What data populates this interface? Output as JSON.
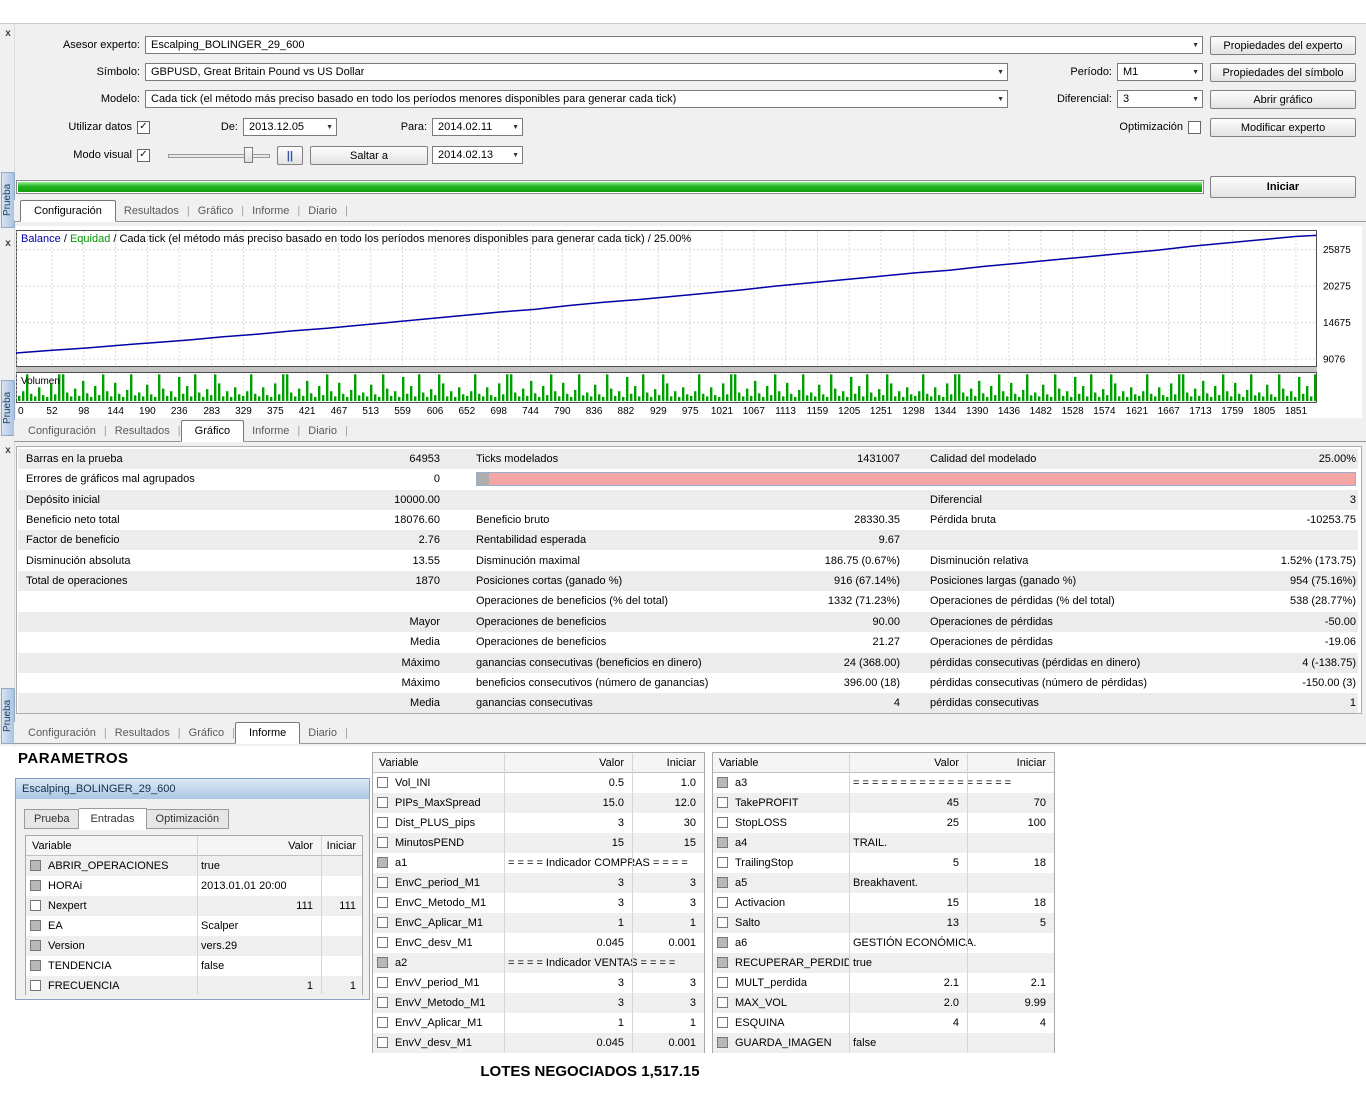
{
  "app": {
    "name": "Strategy Tester - Prueba"
  },
  "icons": {
    "dropdown": "▼",
    "check": "✓",
    "divider": "|",
    "close": "x"
  },
  "sidebar": {
    "tab_label": "Prueba"
  },
  "colors": {
    "progress_green": "#22b322",
    "balance_line": "#0000a8",
    "equity_label": "#009900",
    "volume_green": "#00a000",
    "quality_pink": "#f4a6a6",
    "rail_tab_blue": "#aac2e0"
  },
  "settings": {
    "rows": {
      "expert": {
        "label": "Asesor experto:",
        "value": "Escalping_BOLINGER_29_600"
      },
      "symbol": {
        "label": "Símbolo:",
        "value": "GBPUSD, Great Britain Pound vs US Dollar"
      },
      "period": {
        "label": "Período:",
        "value": "M1"
      },
      "model": {
        "label": "Modelo:",
        "value": "Cada tick (el método más preciso basado en todo los períodos menores disponibles para generar cada tick)"
      },
      "spread": {
        "label": "Diferencial:",
        "value": "3"
      },
      "use_data": {
        "label": "Utilizar datos",
        "checked": true
      },
      "from": {
        "label": "De:",
        "value": "2013.12.05"
      },
      "to": {
        "label": "Para:",
        "value": "2014.02.11"
      },
      "optimization": {
        "label": "Optimización",
        "checked": false
      },
      "visual": {
        "label": "Modo visual",
        "checked": true
      },
      "pause": "||",
      "skip": {
        "label": "Saltar a",
        "value": "2014.02.13"
      }
    },
    "buttons": {
      "expert_props": "Propiedades del experto",
      "symbol_props": "Propiedades del símbolo",
      "open_chart": "Abrir gráfico",
      "modify_expert": "Modificar experto",
      "start": "Iniciar"
    }
  },
  "tabs": {
    "labels": [
      "Configuración",
      "Resultados",
      "Gráfico",
      "Informe",
      "Diario"
    ],
    "strips": [
      {
        "active": 0
      },
      {
        "active": 2
      },
      {
        "active": 3
      }
    ]
  },
  "chart_data": {
    "type": "line",
    "title_parts": {
      "balance": "Balance",
      "equity": "Equidad",
      "rest": "Cada tick (el método más preciso basado en todo los períodos menores disponibles para generar cada tick)",
      "quality": "25.00%"
    },
    "xlabel": "",
    "ylabel": "",
    "x_range": [
      0,
      1880
    ],
    "y_range": [
      8000,
      28900
    ],
    "y_ticks": [
      9076,
      14675,
      20275,
      25875
    ],
    "x_ticks": [
      0,
      52,
      98,
      144,
      190,
      236,
      283,
      329,
      375,
      421,
      467,
      513,
      559,
      606,
      652,
      698,
      744,
      790,
      836,
      882,
      929,
      975,
      1021,
      1067,
      1113,
      1159,
      1205,
      1251,
      1298,
      1344,
      1390,
      1436,
      1482,
      1528,
      1574,
      1621,
      1667,
      1713,
      1759,
      1805,
      1851
    ],
    "series": [
      {
        "name": "Balance",
        "points": [
          [
            0,
            10000
          ],
          [
            50,
            10400
          ],
          [
            100,
            10750
          ],
          [
            150,
            11200
          ],
          [
            200,
            11600
          ],
          [
            250,
            12000
          ],
          [
            300,
            12500
          ],
          [
            350,
            12900
          ],
          [
            400,
            13400
          ],
          [
            450,
            13800
          ],
          [
            500,
            14300
          ],
          [
            550,
            14800
          ],
          [
            600,
            15300
          ],
          [
            650,
            15800
          ],
          [
            700,
            16300
          ],
          [
            750,
            16700
          ],
          [
            800,
            17300
          ],
          [
            850,
            17800
          ],
          [
            900,
            18200
          ],
          [
            950,
            18700
          ],
          [
            1000,
            19200
          ],
          [
            1050,
            19700
          ],
          [
            1100,
            20300
          ],
          [
            1150,
            20800
          ],
          [
            1200,
            21300
          ],
          [
            1250,
            21800
          ],
          [
            1300,
            22300
          ],
          [
            1350,
            22700
          ],
          [
            1400,
            23300
          ],
          [
            1450,
            23800
          ],
          [
            1500,
            24300
          ],
          [
            1550,
            24800
          ],
          [
            1600,
            25300
          ],
          [
            1650,
            25800
          ],
          [
            1700,
            26400
          ],
          [
            1750,
            26900
          ],
          [
            1800,
            27400
          ],
          [
            1850,
            27900
          ],
          [
            1880,
            28076.6
          ]
        ]
      }
    ],
    "volume_label": "Volumen",
    "volume_pattern": [
      0.12,
      0.3,
      0.95,
      0.2,
      0.1,
      0.45,
      0.15,
      0.08,
      0.6,
      0.18,
      0.95,
      0.95,
      0.25,
      0.1,
      0.4,
      0.12,
      0.7,
      0.22,
      0.08,
      0.5,
      0.15,
      0.95,
      0.3,
      0.1,
      0.62,
      0.2,
      0.08,
      0.35,
      0.95,
      0.14,
      0.25,
      0.1,
      0.55,
      0.18,
      0.08,
      0.95,
      0.4,
      0.12,
      0.3,
      0.08,
      0.85,
      0.2,
      0.5,
      0.1,
      0.95,
      0.25,
      0.08,
      0.38,
      0.15,
      0.95,
      0.6,
      0.1,
      0.3,
      0.08,
      0.45,
      0.18
    ],
    "grid": true,
    "legend_position": "top-left"
  },
  "report": {
    "rows": [
      {
        "cells": [
          "Barras en la prueba",
          "64953",
          "Ticks modelados",
          "1431007",
          "Calidad del modelado",
          "25.00%"
        ]
      },
      {
        "cells": [
          "Errores de gráficos mal agrupados",
          "0",
          "",
          "",
          "",
          ""
        ],
        "bar": true
      },
      {
        "cells": [
          "Depósito inicial",
          "10000.00",
          "",
          "",
          "Diferencial",
          "3"
        ]
      },
      {
        "cells": [
          "Beneficio neto total",
          "18076.60",
          "Beneficio bruto",
          "28330.35",
          "Pérdida bruta",
          "-10253.75"
        ]
      },
      {
        "cells": [
          "Factor de beneficio",
          "2.76",
          "Rentabilidad esperada",
          "9.67",
          "",
          ""
        ]
      },
      {
        "cells": [
          "Disminución absoluta",
          "13.55",
          "Disminución maximal",
          "186.75 (0.67%)",
          "Disminución relativa",
          "1.52% (173.75)"
        ]
      },
      {
        "cells": [
          "Total de operaciones",
          "1870",
          "Posiciones cortas (ganado %)",
          "916 (67.14%)",
          "Posiciones largas (ganado %)",
          "954 (75.16%)"
        ]
      },
      {
        "cells": [
          "",
          "",
          "Operaciones de beneficios (% del total)",
          "1332 (71.23%)",
          "Operaciones de pérdidas (% del total)",
          "538 (28.77%)"
        ]
      },
      {
        "cells": [
          "",
          "Mayor",
          "Operaciones de beneficios",
          "90.00",
          "Operaciones de pérdidas",
          "-50.00"
        ]
      },
      {
        "cells": [
          "",
          "Media",
          "Operaciones de beneficios",
          "21.27",
          "Operaciones de pérdidas",
          "-19.06"
        ]
      },
      {
        "cells": [
          "",
          "Máximo",
          "ganancias consecutivas (beneficios en dinero)",
          "24 (368.00)",
          "pérdidas consecutivas (pérdidas en dinero)",
          "4 (-138.75)"
        ]
      },
      {
        "cells": [
          "",
          "Máximo",
          "beneficios consecutivos (número de ganancias)",
          "396.00 (18)",
          "pérdidas consecutivas (número de pérdidas)",
          "-150.00 (3)"
        ]
      },
      {
        "cells": [
          "",
          "Media",
          "ganancias consecutivas",
          "4",
          "pérdidas consecutivas",
          "1"
        ]
      }
    ]
  },
  "params": {
    "heading": "PARAMETROS",
    "window_title": "Escalping_BOLINGER_29_600",
    "window_tabs": [
      "Prueba",
      "Entradas",
      "Optimización"
    ],
    "window_active_tab": 1,
    "headers": [
      "Variable",
      "Valor",
      "Iniciar"
    ],
    "left": [
      {
        "n": "ABRIR_OPERACIONES",
        "v": "true",
        "t": "str"
      },
      {
        "n": "HORAi",
        "v": "2013.01.01 20:00",
        "t": "str"
      },
      {
        "n": "Nexpert",
        "v": "111",
        "i": "111",
        "t": "num"
      },
      {
        "n": "EA",
        "v": "Scalper",
        "t": "str"
      },
      {
        "n": "Version",
        "v": "vers.29",
        "t": "str"
      },
      {
        "n": "TENDENCIA",
        "v": "false",
        "t": "str"
      },
      {
        "n": "FRECUENCIA",
        "v": "1",
        "i": "1",
        "t": "num"
      }
    ],
    "middle": [
      {
        "n": "Vol_INI",
        "v": "0.5",
        "i": "1.0",
        "t": "num"
      },
      {
        "n": "PIPs_MaxSpread",
        "v": "15.0",
        "i": "12.0",
        "t": "num"
      },
      {
        "n": "Dist_PLUS_pips",
        "v": "3",
        "i": "30",
        "t": "num"
      },
      {
        "n": "MinutosPEND",
        "v": "15",
        "i": "15",
        "t": "num"
      },
      {
        "n": "a1",
        "v": "= = = = Indicador COMPRAS = = = =",
        "t": "sec"
      },
      {
        "n": "EnvC_period_M1",
        "v": "3",
        "i": "3",
        "t": "num"
      },
      {
        "n": "EnvC_Metodo_M1",
        "v": "3",
        "i": "3",
        "t": "num"
      },
      {
        "n": "EnvC_Aplicar_M1",
        "v": "1",
        "i": "1",
        "t": "num"
      },
      {
        "n": "EnvC_desv_M1",
        "v": "0.045",
        "i": "0.001",
        "t": "num"
      },
      {
        "n": "a2",
        "v": "= = = = Indicador VENTAS = = = =",
        "t": "sec"
      },
      {
        "n": "EnvV_period_M1",
        "v": "3",
        "i": "3",
        "t": "num"
      },
      {
        "n": "EnvV_Metodo_M1",
        "v": "3",
        "i": "3",
        "t": "num"
      },
      {
        "n": "EnvV_Aplicar_M1",
        "v": "1",
        "i": "1",
        "t": "num"
      },
      {
        "n": "EnvV_desv_M1",
        "v": "0.045",
        "i": "0.001",
        "t": "num"
      }
    ],
    "right": [
      {
        "n": "a3",
        "v": "= = = = = = = = = = = = = = = = =",
        "t": "sec"
      },
      {
        "n": "TakePROFIT",
        "v": "45",
        "i": "70",
        "t": "num"
      },
      {
        "n": "StopLOSS",
        "v": "25",
        "i": "100",
        "t": "num"
      },
      {
        "n": "a4",
        "v": "TRAIL.",
        "t": "sec"
      },
      {
        "n": "TrailingStop",
        "v": "5",
        "i": "18",
        "t": "num"
      },
      {
        "n": "a5",
        "v": "Breakhavent.",
        "t": "sec"
      },
      {
        "n": "Activacion",
        "v": "15",
        "i": "18",
        "t": "num"
      },
      {
        "n": "Salto",
        "v": "13",
        "i": "5",
        "t": "num"
      },
      {
        "n": "a6",
        "v": "GESTIÓN ECONÓMICA.",
        "t": "sec"
      },
      {
        "n": "RECUPERAR_PERDIDA",
        "v": "true",
        "t": "str"
      },
      {
        "n": "MULT_perdida",
        "v": "2.1",
        "i": "2.1",
        "t": "num"
      },
      {
        "n": "MAX_VOL",
        "v": "2.0",
        "i": "9.99",
        "t": "num"
      },
      {
        "n": "ESQUINA",
        "v": "4",
        "i": "4",
        "t": "num"
      },
      {
        "n": "GUARDA_IMAGEN",
        "v": "false",
        "t": "str"
      }
    ]
  },
  "footer": {
    "lots": "LOTES NEGOCIADOS 1,517.15"
  }
}
